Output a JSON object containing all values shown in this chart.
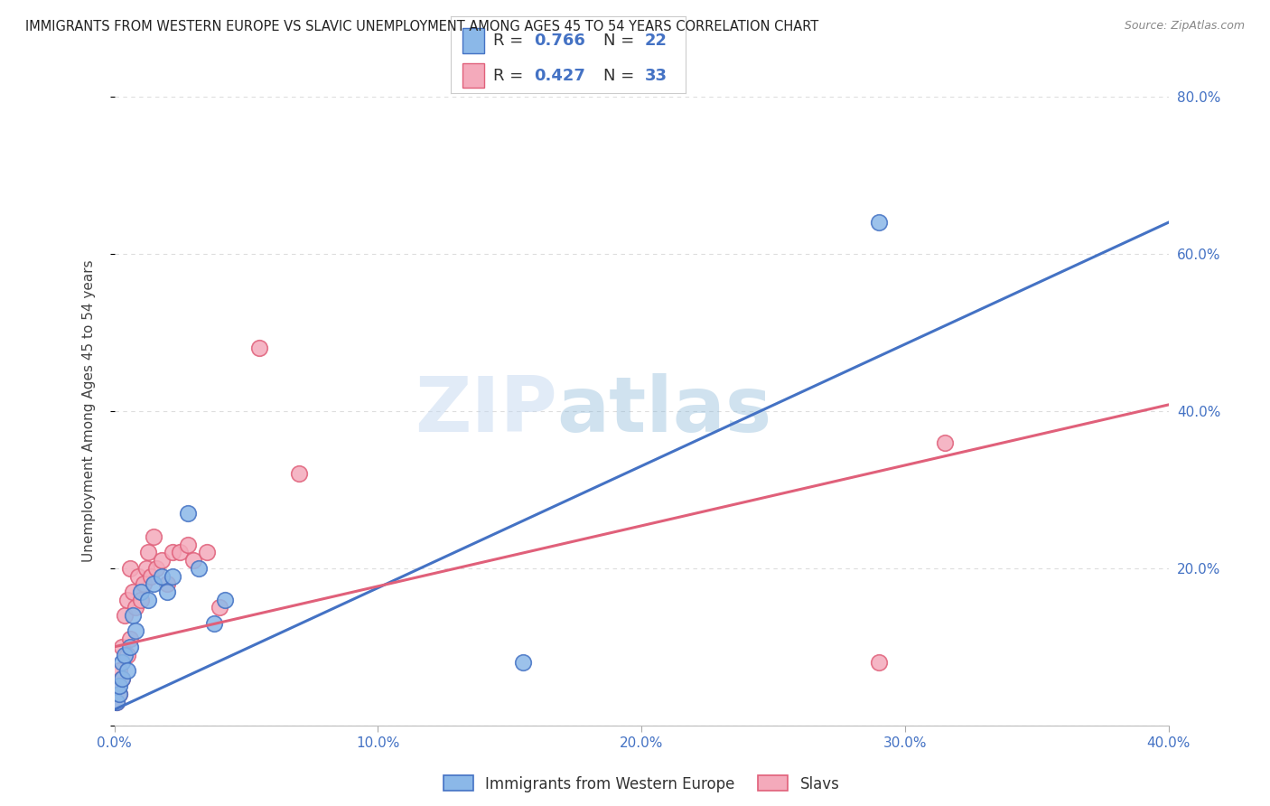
{
  "title": "IMMIGRANTS FROM WESTERN EUROPE VS SLAVIC UNEMPLOYMENT AMONG AGES 45 TO 54 YEARS CORRELATION CHART",
  "source": "Source: ZipAtlas.com",
  "ylabel": "Unemployment Among Ages 45 to 54 years",
  "xlim": [
    0.0,
    0.4
  ],
  "ylim": [
    0.0,
    0.8
  ],
  "xticks": [
    0.0,
    0.1,
    0.2,
    0.3,
    0.4
  ],
  "yticks": [
    0.0,
    0.2,
    0.4,
    0.6,
    0.8
  ],
  "xticklabels": [
    "0.0%",
    "10.0%",
    "20.0%",
    "30.0%",
    "40.0%"
  ],
  "yticklabels": [
    "",
    "20.0%",
    "40.0%",
    "60.0%",
    "80.0%"
  ],
  "blue_color": "#8BB8E8",
  "pink_color": "#F4AABB",
  "blue_line_color": "#4472C4",
  "pink_line_color": "#E0607A",
  "tick_color": "#4472C4",
  "legend_R_blue": "0.766",
  "legend_N_blue": "22",
  "legend_R_pink": "0.427",
  "legend_N_pink": "33",
  "blue_scatter_x": [
    0.001,
    0.002,
    0.002,
    0.003,
    0.003,
    0.004,
    0.005,
    0.006,
    0.007,
    0.008,
    0.01,
    0.013,
    0.015,
    0.018,
    0.02,
    0.022,
    0.028,
    0.032,
    0.038,
    0.042,
    0.155,
    0.29
  ],
  "blue_scatter_y": [
    0.03,
    0.04,
    0.05,
    0.06,
    0.08,
    0.09,
    0.07,
    0.1,
    0.14,
    0.12,
    0.17,
    0.16,
    0.18,
    0.19,
    0.17,
    0.19,
    0.27,
    0.2,
    0.13,
    0.16,
    0.08,
    0.64
  ],
  "pink_scatter_x": [
    0.001,
    0.001,
    0.002,
    0.002,
    0.003,
    0.003,
    0.004,
    0.005,
    0.005,
    0.006,
    0.006,
    0.007,
    0.008,
    0.009,
    0.01,
    0.011,
    0.012,
    0.013,
    0.014,
    0.015,
    0.016,
    0.018,
    0.02,
    0.022,
    0.025,
    0.028,
    0.03,
    0.035,
    0.04,
    0.055,
    0.07,
    0.29,
    0.315
  ],
  "pink_scatter_y": [
    0.03,
    0.05,
    0.04,
    0.07,
    0.06,
    0.1,
    0.14,
    0.09,
    0.16,
    0.11,
    0.2,
    0.17,
    0.15,
    0.19,
    0.16,
    0.18,
    0.2,
    0.22,
    0.19,
    0.24,
    0.2,
    0.21,
    0.18,
    0.22,
    0.22,
    0.23,
    0.21,
    0.22,
    0.15,
    0.48,
    0.32,
    0.08,
    0.36
  ],
  "blue_intercept": 0.02,
  "blue_slope": 1.55,
  "pink_intercept": 0.1,
  "pink_slope": 0.77,
  "watermark_zip": "ZIP",
  "watermark_atlas": "atlas",
  "background_color": "#FFFFFF",
  "grid_color": "#DDDDDD"
}
